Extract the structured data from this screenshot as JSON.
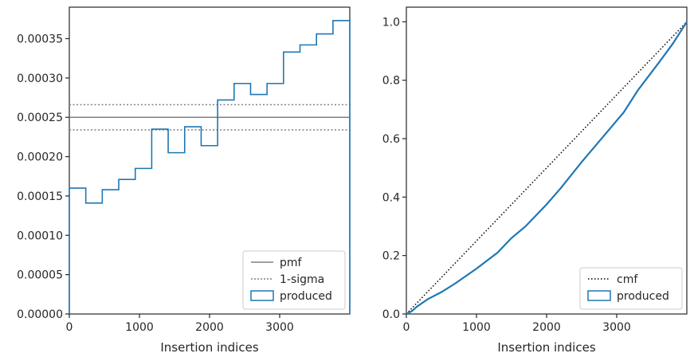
{
  "chart_data": [
    {
      "type": "histogram",
      "xlabel": "Insertion indices",
      "ylabel": "",
      "xlim": [
        0,
        4000
      ],
      "ylim": [
        0,
        0.00039
      ],
      "xticks": [
        "0",
        "1000",
        "2000",
        "3000"
      ],
      "xtick_values": [
        0,
        1000,
        2000,
        3000
      ],
      "yticks": [
        "0.00000",
        "0.00005",
        "0.00010",
        "0.00015",
        "0.00020",
        "0.00025",
        "0.00030",
        "0.00035"
      ],
      "ytick_values": [
        0,
        5e-05,
        0.0001,
        0.00015,
        0.0002,
        0.00025,
        0.0003,
        0.00035
      ],
      "grid": false,
      "legend_position": "bottom-right",
      "series": [
        {
          "name": "pmf",
          "kind": "hline",
          "value": 0.00025,
          "color": "#808080",
          "style": "solid"
        },
        {
          "name": "1-sigma",
          "kind": "hlines",
          "values": [
            0.000266,
            0.000234
          ],
          "color": "#808080",
          "style": "dotted"
        },
        {
          "name": "produced",
          "kind": "step",
          "color": "#1f77b4",
          "bin_edges": [
            0,
            235,
            470,
            705,
            940,
            1175,
            1410,
            1645,
            1880,
            2115,
            2350,
            2585,
            2820,
            3055,
            3290,
            3525,
            3760,
            4000
          ],
          "values": [
            0.00016,
            0.000141,
            0.000158,
            0.000171,
            0.000185,
            0.000235,
            0.000205,
            0.000238,
            0.000214,
            0.000272,
            0.000293,
            0.000279,
            0.000293,
            0.000333,
            0.000342,
            0.000356,
            0.000373
          ]
        }
      ]
    },
    {
      "type": "line",
      "xlabel": "Insertion indices",
      "ylabel": "",
      "xlim": [
        0,
        4000
      ],
      "ylim": [
        0,
        1.05
      ],
      "xticks": [
        "0",
        "1000",
        "2000",
        "3000"
      ],
      "xtick_values": [
        0,
        1000,
        2000,
        3000
      ],
      "yticks": [
        "0.0",
        "0.2",
        "0.4",
        "0.6",
        "0.8",
        "1.0"
      ],
      "ytick_values": [
        0,
        0.2,
        0.4,
        0.6,
        0.8,
        1.0
      ],
      "grid": false,
      "legend_position": "bottom-right",
      "series": [
        {
          "name": "cmf",
          "kind": "line",
          "color": "#000000",
          "style": "dotted",
          "x": [
            0,
            4000
          ],
          "y": [
            0,
            1.0
          ]
        },
        {
          "name": "produced",
          "kind": "step",
          "color": "#1f77b4",
          "x": [
            0,
            80,
            150,
            300,
            500,
            700,
            1000,
            1300,
            1500,
            1700,
            2000,
            2200,
            2500,
            2800,
            3100,
            3300,
            3600,
            3800,
            4000
          ],
          "y": [
            0,
            0.01,
            0.025,
            0.05,
            0.075,
            0.105,
            0.155,
            0.21,
            0.26,
            0.3,
            0.375,
            0.43,
            0.52,
            0.605,
            0.69,
            0.765,
            0.86,
            0.925,
            1.0
          ]
        }
      ]
    }
  ]
}
